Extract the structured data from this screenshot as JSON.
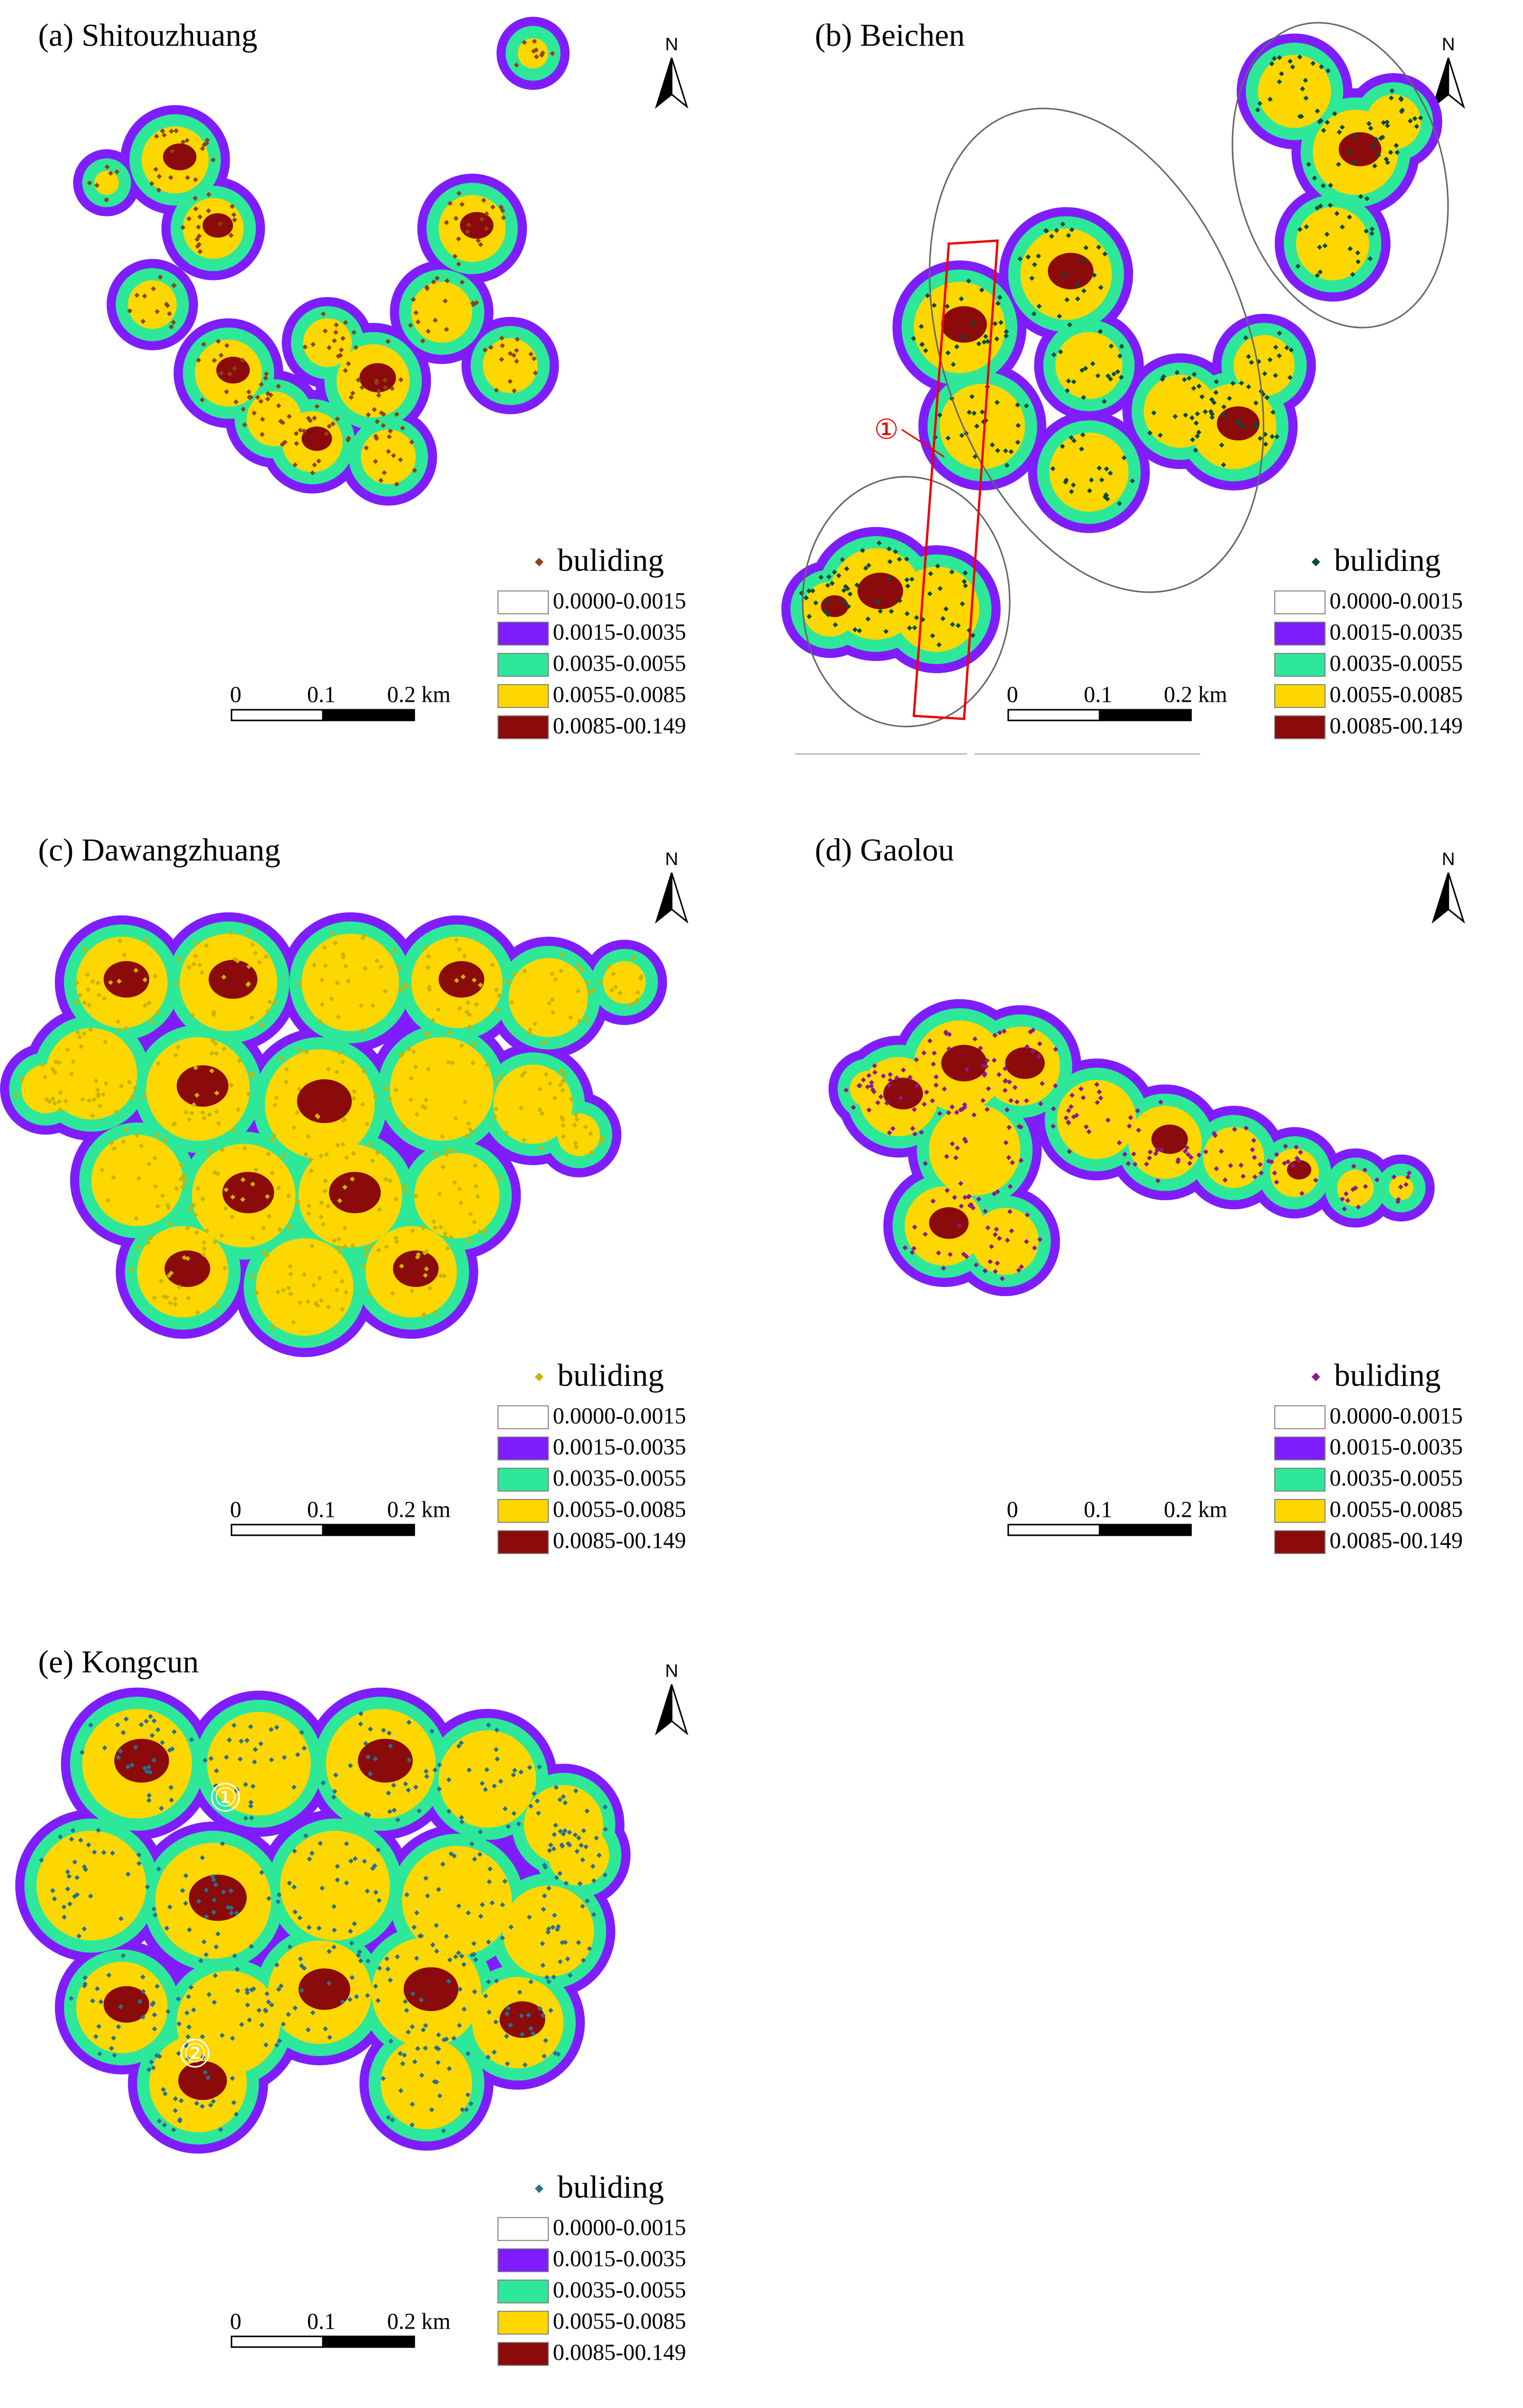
{
  "panels": [
    {
      "title": "(a) Shitouzhuang",
      "north": "N",
      "marker_color": "#8b4513",
      "legend": {
        "marker_label": "buliding",
        "classes": [
          {
            "label": "0.0000-0.0015",
            "color": "#ffffff"
          },
          {
            "label": "0.0015-0.0035",
            "color": "#7f1dff"
          },
          {
            "label": "0.0035-0.0055",
            "color": "#2ee89a"
          },
          {
            "label": "0.0055-0.0085",
            "color": "#ffd700"
          },
          {
            "label": "0.0085-00.149",
            "color": "#8b0a0a"
          }
        ]
      },
      "scale_bar": {
        "labels": [
          "0",
          "0.1",
          "0.2 km"
        ]
      },
      "annotations": []
    },
    {
      "title": "(b) Beichen",
      "north": "N",
      "marker_color": "#0b4a3a",
      "legend": {
        "marker_label": "buliding",
        "classes": [
          {
            "label": "0.0000-0.0015",
            "color": "#ffffff"
          },
          {
            "label": "0.0015-0.0035",
            "color": "#7f1dff"
          },
          {
            "label": "0.0035-0.0055",
            "color": "#2ee89a"
          },
          {
            "label": "0.0055-0.0085",
            "color": "#ffd700"
          },
          {
            "label": "0.0085-00.149",
            "color": "#8b0a0a"
          }
        ]
      },
      "scale_bar": {
        "labels": [
          "0",
          "0.1",
          "0.2 km"
        ]
      },
      "annotations": [
        "①"
      ]
    },
    {
      "title": "(c) Dawangzhuang",
      "north": "N",
      "marker_color": "#c8b400",
      "legend": {
        "marker_label": "buliding",
        "classes": [
          {
            "label": "0.0000-0.0015",
            "color": "#ffffff"
          },
          {
            "label": "0.0015-0.0035",
            "color": "#7f1dff"
          },
          {
            "label": "0.0035-0.0055",
            "color": "#2ee89a"
          },
          {
            "label": "0.0055-0.0085",
            "color": "#ffd700"
          },
          {
            "label": "0.0085-00.149",
            "color": "#8b0a0a"
          }
        ]
      },
      "scale_bar": {
        "labels": [
          "0",
          "0.1",
          "0.2 km"
        ]
      },
      "annotations": []
    },
    {
      "title": "(d) Gaolou",
      "north": "N",
      "marker_color": "#8b1a8b",
      "legend": {
        "marker_label": "buliding",
        "classes": [
          {
            "label": "0.0000-0.0015",
            "color": "#ffffff"
          },
          {
            "label": "0.0015-0.0035",
            "color": "#7f1dff"
          },
          {
            "label": "0.0035-0.0055",
            "color": "#2ee89a"
          },
          {
            "label": "0.0055-0.0085",
            "color": "#ffd700"
          },
          {
            "label": "0.0085-00.149",
            "color": "#8b0a0a"
          }
        ]
      },
      "scale_bar": {
        "labels": [
          "0",
          "0.1",
          "0.2 km"
        ]
      },
      "annotations": []
    },
    {
      "title": "(e) Kongcun",
      "north": "N",
      "marker_color": "#2b6f8f",
      "legend": {
        "marker_label": "buliding",
        "classes": [
          {
            "label": "0.0000-0.0015",
            "color": "#ffffff"
          },
          {
            "label": "0.0015-0.0035",
            "color": "#7f1dff"
          },
          {
            "label": "0.0035-0.0055",
            "color": "#2ee89a"
          },
          {
            "label": "0.0055-0.0085",
            "color": "#ffd700"
          },
          {
            "label": "0.0085-00.149",
            "color": "#8b0a0a"
          }
        ]
      },
      "scale_bar": {
        "labels": [
          "0",
          "0.1",
          "0.2 km"
        ]
      },
      "annotations": [
        "①",
        "②"
      ]
    }
  ]
}
